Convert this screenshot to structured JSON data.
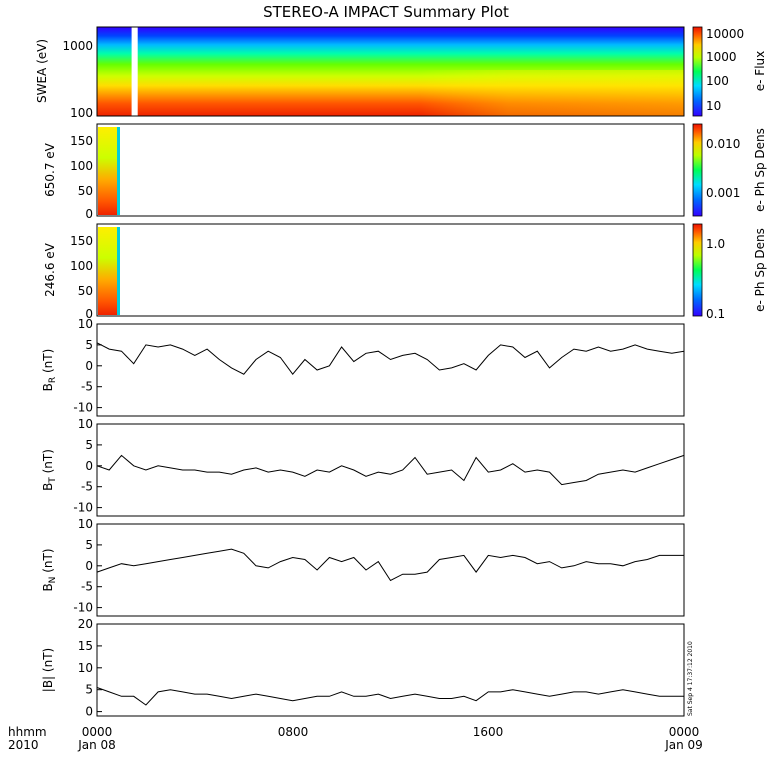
{
  "title": "STEREO-A IMPACT Summary Plot",
  "footer": {
    "time_label": "hhmm",
    "year_label": "2010",
    "date_start": "Jan 08",
    "date_end": "Jan 09",
    "stamp": "Sat Sep  4 17:37:12 2010"
  },
  "chart_data": [
    {
      "type": "heatmap",
      "panel": "swea",
      "ylabel": "SWEA (eV)",
      "yscale": "log",
      "ylim": [
        90,
        2000
      ],
      "yticks": [
        "100",
        "1000"
      ],
      "colorbar": {
        "label": "e- Flux",
        "scale": "log",
        "range": [
          5,
          15000
        ],
        "ticks": [
          "10000",
          "1000",
          "100",
          "10"
        ]
      },
      "x_ticks": [
        "0000",
        "0800",
        "1600",
        "0000"
      ],
      "data_gap_hhmm": [
        "0125",
        "0140"
      ]
    },
    {
      "type": "heatmap",
      "panel": "pad_650",
      "ylabel": "650.7 eV",
      "ylim": [
        0,
        180
      ],
      "yticks": [
        "0",
        "50",
        "100",
        "150"
      ],
      "colorbar": {
        "label": "e- Ph Sp Dens",
        "scale": "log",
        "range": [
          0.0002,
          0.02
        ],
        "ticks": [
          "0.010",
          "0.001"
        ]
      },
      "data_extent_hhmm": [
        "0000",
        "0100"
      ]
    },
    {
      "type": "heatmap",
      "panel": "pad_246",
      "ylabel": "246.6 eV",
      "ylim": [
        0,
        180
      ],
      "yticks": [
        "0",
        "50",
        "100",
        "150"
      ],
      "colorbar": {
        "label": "e- Ph Sp Dens",
        "scale": "log",
        "range": [
          0.1,
          2
        ],
        "ticks": [
          "1.0",
          "0.1"
        ]
      },
      "data_extent_hhmm": [
        "0000",
        "0100"
      ]
    },
    {
      "type": "line",
      "panel": "br",
      "ylabel": "B_R (nT)",
      "ylim": [
        -12,
        10
      ],
      "yticks": [
        "10",
        "5",
        "0",
        "-5",
        "-10"
      ],
      "x_hours": [
        0,
        0.5,
        1,
        1.5,
        2,
        2.5,
        3,
        3.5,
        4,
        4.5,
        5,
        5.5,
        6,
        6.5,
        7,
        7.5,
        8,
        8.5,
        9,
        9.5,
        10,
        10.5,
        11,
        11.5,
        12,
        12.5,
        13,
        13.5,
        14,
        14.5,
        15,
        15.5,
        16,
        16.5,
        17,
        17.5,
        18,
        18.5,
        19,
        19.5,
        20,
        20.5,
        21,
        21.5,
        22,
        22.5,
        23,
        23.5,
        24
      ],
      "y": [
        5.5,
        4,
        3.5,
        0.5,
        5,
        4.5,
        5,
        4,
        2.5,
        4,
        1.5,
        -0.5,
        -2,
        1.5,
        3.5,
        2,
        -2,
        1.5,
        -1,
        0,
        4.5,
        1,
        3,
        3.5,
        1.5,
        2.5,
        3,
        1.5,
        -1,
        -0.5,
        0.5,
        -1,
        2.5,
        5,
        4.5,
        2,
        3.5,
        -0.5,
        2,
        4,
        3.5,
        4.5,
        3.5,
        4,
        5,
        4,
        3.5,
        3,
        3.5
      ]
    },
    {
      "type": "line",
      "panel": "bt",
      "ylabel": "B_T (nT)",
      "ylim": [
        -12,
        10
      ],
      "yticks": [
        "10",
        "5",
        "0",
        "-5",
        "-10"
      ],
      "x_hours": [
        0,
        0.5,
        1,
        1.5,
        2,
        2.5,
        3,
        3.5,
        4,
        4.5,
        5,
        5.5,
        6,
        6.5,
        7,
        7.5,
        8,
        8.5,
        9,
        9.5,
        10,
        10.5,
        11,
        11.5,
        12,
        12.5,
        13,
        13.5,
        14,
        14.5,
        15,
        15.5,
        16,
        16.5,
        17,
        17.5,
        18,
        18.5,
        19,
        19.5,
        20,
        20.5,
        21,
        21.5,
        22,
        22.5,
        23,
        23.5,
        24
      ],
      "y": [
        0,
        -1,
        2.5,
        0,
        -1,
        0,
        -0.5,
        -1,
        -1,
        -1.5,
        -1.5,
        -2,
        -1,
        -0.5,
        -1.5,
        -1,
        -1.5,
        -2.5,
        -1,
        -1.5,
        0,
        -1,
        -2.5,
        -1.5,
        -2,
        -1,
        2,
        -2,
        -1.5,
        -1,
        -3.5,
        2,
        -1.5,
        -1,
        0.5,
        -1.5,
        -1,
        -1.5,
        -4.5,
        -4,
        -3.5,
        -2,
        -1.5,
        -1,
        -1.5,
        -0.5,
        0.5,
        1.5,
        2.5
      ]
    },
    {
      "type": "line",
      "panel": "bn",
      "ylabel": "B_N (nT)",
      "ylim": [
        -12,
        10
      ],
      "yticks": [
        "10",
        "5",
        "0",
        "-5",
        "-10"
      ],
      "x_hours": [
        0,
        0.5,
        1,
        1.5,
        2,
        2.5,
        3,
        3.5,
        4,
        4.5,
        5,
        5.5,
        6,
        6.5,
        7,
        7.5,
        8,
        8.5,
        9,
        9.5,
        10,
        10.5,
        11,
        11.5,
        12,
        12.5,
        13,
        13.5,
        14,
        14.5,
        15,
        15.5,
        16,
        16.5,
        17,
        17.5,
        18,
        18.5,
        19,
        19.5,
        20,
        20.5,
        21,
        21.5,
        22,
        22.5,
        23,
        23.5,
        24
      ],
      "y": [
        -1.5,
        -0.5,
        0.5,
        0,
        0.5,
        1,
        1.5,
        2,
        2.5,
        3,
        3.5,
        4,
        3,
        0,
        -0.5,
        1,
        2,
        1.5,
        -1,
        2,
        1,
        2,
        -1,
        1,
        -3.5,
        -2,
        -2,
        -1.5,
        1.5,
        2,
        2.5,
        -1.5,
        2.5,
        2,
        2.5,
        2,
        0.5,
        1,
        -0.5,
        0,
        1,
        0.5,
        0.5,
        0,
        1,
        1.5,
        2.5,
        2.5,
        2.5
      ]
    },
    {
      "type": "line",
      "panel": "bmag",
      "ylabel": "|B| (nT)",
      "ylim": [
        -1,
        20
      ],
      "yticks": [
        "20",
        "15",
        "10",
        "5",
        "0"
      ],
      "x_hours": [
        0,
        0.5,
        1,
        1.5,
        2,
        2.5,
        3,
        3.5,
        4,
        4.5,
        5,
        5.5,
        6,
        6.5,
        7,
        7.5,
        8,
        8.5,
        9,
        9.5,
        10,
        10.5,
        11,
        11.5,
        12,
        12.5,
        13,
        13.5,
        14,
        14.5,
        15,
        15.5,
        16,
        16.5,
        17,
        17.5,
        18,
        18.5,
        19,
        19.5,
        20,
        20.5,
        21,
        21.5,
        22,
        22.5,
        23,
        23.5,
        24
      ],
      "y": [
        5.5,
        4.5,
        3.5,
        3.5,
        1.5,
        4.5,
        5,
        4.5,
        4,
        4,
        3.5,
        3,
        3.5,
        4,
        3.5,
        3,
        2.5,
        3,
        3.5,
        3.5,
        4.5,
        3.5,
        3.5,
        4,
        3,
        3.5,
        4,
        3.5,
        3,
        3,
        3.5,
        2.5,
        4.5,
        4.5,
        5,
        4.5,
        4,
        3.5,
        4,
        4.5,
        4.5,
        4,
        4.5,
        5,
        4.5,
        4,
        3.5,
        3.5,
        3.5
      ]
    }
  ]
}
